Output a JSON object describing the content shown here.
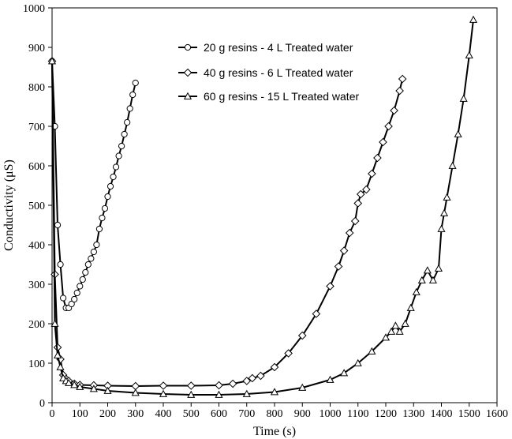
{
  "chart_data": {
    "type": "line",
    "title": "",
    "xlabel": "Time (s)",
    "ylabel": "Conductivity (μS)",
    "xlim": [
      0,
      1600
    ],
    "ylim": [
      0,
      1000
    ],
    "xticks": [
      0,
      100,
      200,
      300,
      400,
      500,
      600,
      700,
      800,
      900,
      1000,
      1100,
      1200,
      1300,
      1400,
      1500,
      1600
    ],
    "yticks": [
      0,
      100,
      200,
      300,
      400,
      500,
      600,
      700,
      800,
      900,
      1000
    ],
    "grid": false,
    "legend_position": "top-center",
    "series": [
      {
        "name": "20 g resins - 4 L Treated water",
        "marker": "circle",
        "x": [
          0,
          10,
          20,
          30,
          40,
          50,
          60,
          70,
          80,
          90,
          100,
          110,
          120,
          130,
          140,
          150,
          160,
          170,
          180,
          190,
          200,
          210,
          220,
          230,
          240,
          250,
          260,
          270,
          280,
          290,
          300
        ],
        "y": [
          865,
          700,
          450,
          350,
          265,
          240,
          240,
          250,
          262,
          278,
          295,
          312,
          330,
          350,
          365,
          382,
          400,
          440,
          468,
          492,
          522,
          548,
          572,
          597,
          625,
          650,
          680,
          710,
          745,
          780,
          810
        ]
      },
      {
        "name": "40 g resins - 6 L Treated water",
        "marker": "diamond",
        "x": [
          0,
          10,
          20,
          30,
          40,
          50,
          60,
          80,
          100,
          150,
          200,
          300,
          400,
          500,
          600,
          650,
          700,
          720,
          750,
          800,
          850,
          900,
          950,
          1000,
          1030,
          1050,
          1070,
          1090,
          1100,
          1110,
          1130,
          1150,
          1170,
          1190,
          1210,
          1230,
          1250,
          1260
        ],
        "y": [
          865,
          325,
          140,
          110,
          70,
          60,
          55,
          48,
          45,
          44,
          43,
          42,
          43,
          43,
          44,
          48,
          55,
          62,
          68,
          90,
          125,
          170,
          225,
          295,
          345,
          385,
          430,
          460,
          505,
          528,
          540,
          580,
          620,
          660,
          700,
          740,
          790,
          820
        ]
      },
      {
        "name": "60 g resins - 15 L Treated water",
        "marker": "triangle",
        "x": [
          0,
          10,
          20,
          30,
          40,
          50,
          60,
          80,
          100,
          150,
          200,
          300,
          400,
          500,
          600,
          700,
          800,
          900,
          1000,
          1050,
          1100,
          1150,
          1200,
          1220,
          1235,
          1250,
          1270,
          1290,
          1310,
          1330,
          1350,
          1370,
          1390,
          1400,
          1410,
          1420,
          1440,
          1460,
          1480,
          1500,
          1515
        ],
        "y": [
          865,
          200,
          120,
          90,
          62,
          55,
          50,
          45,
          40,
          35,
          30,
          25,
          22,
          20,
          20,
          22,
          27,
          38,
          58,
          75,
          100,
          130,
          165,
          180,
          195,
          180,
          200,
          240,
          280,
          310,
          335,
          310,
          340,
          440,
          480,
          520,
          600,
          680,
          770,
          880,
          970
        ]
      }
    ]
  }
}
